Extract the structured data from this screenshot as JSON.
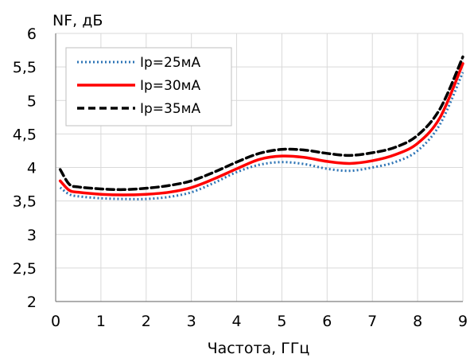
{
  "chart_data": {
    "type": "line",
    "title": "",
    "ylabel": "NF, дБ",
    "xlabel": "Частота, ГГц",
    "xlim": [
      0,
      9
    ],
    "ylim": [
      2,
      6
    ],
    "x_ticks": [
      "0",
      "1",
      "2",
      "3",
      "4",
      "5",
      "6",
      "7",
      "8",
      "9"
    ],
    "y_ticks": [
      "2",
      "2,5",
      "3",
      "3,5",
      "4",
      "4,5",
      "5",
      "5,5",
      "6"
    ],
    "grid": true,
    "legend_position": "top-left",
    "series": [
      {
        "name": "Ip=25мА",
        "color": "#2e75b6",
        "style": "dotted",
        "x": [
          0.1,
          0.3,
          0.5,
          1.0,
          1.5,
          2.0,
          2.5,
          3.0,
          3.5,
          4.0,
          4.5,
          5.0,
          5.5,
          6.0,
          6.5,
          7.0,
          7.5,
          8.0,
          8.5,
          9.0
        ],
        "y": [
          3.7,
          3.6,
          3.57,
          3.54,
          3.53,
          3.53,
          3.56,
          3.63,
          3.77,
          3.93,
          4.04,
          4.08,
          4.05,
          3.98,
          3.95,
          4.0,
          4.08,
          4.25,
          4.65,
          5.42
        ]
      },
      {
        "name": "Ip=30мА",
        "color": "#ff0000",
        "style": "solid",
        "x": [
          0.1,
          0.3,
          0.5,
          1.0,
          1.5,
          2.0,
          2.5,
          3.0,
          3.5,
          4.0,
          4.5,
          5.0,
          5.5,
          6.0,
          6.5,
          7.0,
          7.5,
          8.0,
          8.5,
          9.0
        ],
        "y": [
          3.8,
          3.66,
          3.63,
          3.6,
          3.59,
          3.6,
          3.63,
          3.7,
          3.83,
          3.98,
          4.12,
          4.17,
          4.15,
          4.09,
          4.06,
          4.1,
          4.19,
          4.36,
          4.75,
          5.55
        ]
      },
      {
        "name": "Ip=35мА",
        "color": "#000000",
        "style": "dashed",
        "x": [
          0.1,
          0.3,
          0.5,
          1.0,
          1.5,
          2.0,
          2.5,
          3.0,
          3.5,
          4.0,
          4.5,
          5.0,
          5.5,
          6.0,
          6.5,
          7.0,
          7.5,
          8.0,
          8.5,
          9.0
        ],
        "y": [
          3.97,
          3.75,
          3.71,
          3.68,
          3.67,
          3.69,
          3.73,
          3.8,
          3.93,
          4.08,
          4.21,
          4.27,
          4.26,
          4.21,
          4.18,
          4.22,
          4.3,
          4.48,
          4.88,
          5.65
        ]
      }
    ]
  }
}
